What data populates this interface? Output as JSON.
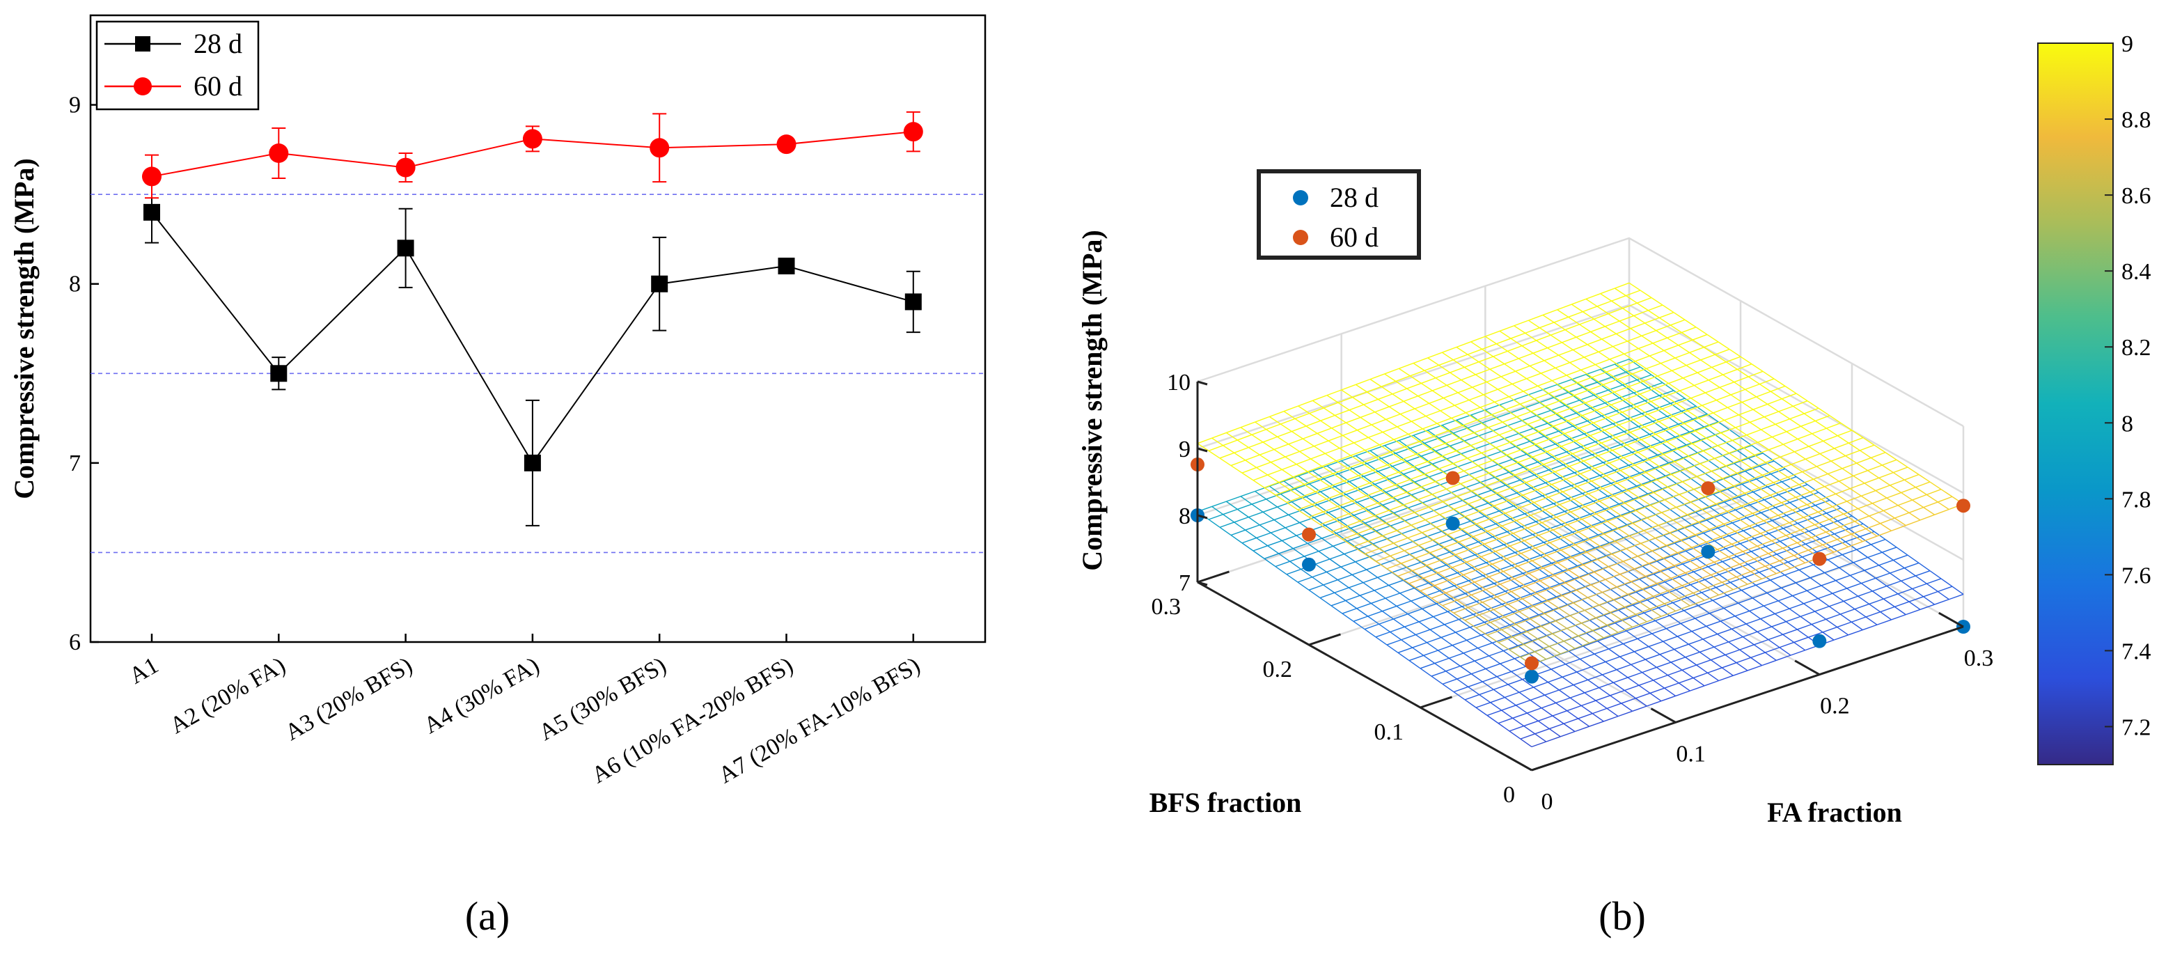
{
  "chart_data": [
    {
      "id": "a",
      "type": "line",
      "panel_label": "(a)",
      "title": "",
      "ylabel": "Compressive strength (MPa)",
      "xlabel": "",
      "ylim": [
        6,
        9.5
      ],
      "yticks": [
        6,
        7,
        8,
        9
      ],
      "reference_lines": [
        6.5,
        7.5,
        8.5
      ],
      "categories": [
        "A1",
        "A2 (20% FA)",
        "A3 (20% BFS)",
        "A4 (30% FA)",
        "A5 (30% BFS)",
        "A6 (10% FA-20% BFS)",
        "A7 (20% FA-10% BFS)"
      ],
      "series": [
        {
          "name": "28 d",
          "color": "#000000",
          "marker": "square",
          "values": [
            8.4,
            7.5,
            8.2,
            7.0,
            8.0,
            8.1,
            7.9
          ],
          "errors": [
            0.17,
            0.09,
            0.22,
            0.35,
            0.26,
            0.0,
            0.17
          ]
        },
        {
          "name": "60 d",
          "color": "#ff0000",
          "marker": "circle",
          "values": [
            8.6,
            8.73,
            8.65,
            8.81,
            8.76,
            8.78,
            8.85
          ],
          "errors": [
            0.12,
            0.14,
            0.08,
            0.07,
            0.19,
            0.0,
            0.11
          ]
        }
      ],
      "legend": {
        "position": "top-left",
        "entries": [
          "28 d",
          "60 d"
        ]
      }
    },
    {
      "id": "b",
      "type": "surface3d",
      "panel_label": "(b)",
      "xlabel": "FA fraction",
      "ylabel": "BFS fraction",
      "zlabel": "Compressive strength (MPa)",
      "xlim": [
        0,
        0.3
      ],
      "ylim": [
        0,
        0.3
      ],
      "zlim": [
        7,
        10
      ],
      "xticks": [
        0,
        0.1,
        0.2,
        0.3
      ],
      "yticks": [
        0,
        0.1,
        0.2,
        0.3
      ],
      "zticks": [
        7,
        8,
        9,
        10
      ],
      "x_tick_labels": [
        "0",
        "0.1",
        "0.2",
        "0.3"
      ],
      "y_tick_labels": [
        "0",
        "0.1",
        "0.2",
        "0.3"
      ],
      "z_tick_labels": [
        "7",
        "8",
        "9",
        "10"
      ],
      "surfaces": [
        {
          "name": "28 d",
          "z00": 7.35,
          "z_fa": 0.45,
          "z_bfs": 2.35
        },
        {
          "name": "60 d",
          "z00": 8.58,
          "z_fa": 0.85,
          "z_bfs": 1.65
        }
      ],
      "series": [
        {
          "name": "28 d",
          "color": "#0072bd",
          "points": [
            [
              0,
              0,
              8.4
            ],
            [
              0.2,
              0,
              7.5
            ],
            [
              0,
              0.2,
              8.2
            ],
            [
              0.3,
              0,
              7.0
            ],
            [
              0,
              0.3,
              8.0
            ],
            [
              0.1,
              0.2,
              8.1
            ],
            [
              0.2,
              0.1,
              7.9
            ]
          ]
        },
        {
          "name": "60 d",
          "color": "#d95319",
          "points": [
            [
              0,
              0,
              8.6
            ],
            [
              0.2,
              0,
              8.73
            ],
            [
              0,
              0.2,
              8.65
            ],
            [
              0.3,
              0,
              8.81
            ],
            [
              0,
              0.3,
              8.76
            ],
            [
              0.1,
              0.2,
              8.78
            ],
            [
              0.2,
              0.1,
              8.85
            ]
          ]
        }
      ],
      "legend": {
        "position": "top-left",
        "entries": [
          "28 d",
          "60 d"
        ]
      },
      "colorbar": {
        "min": 7.1,
        "max": 9,
        "ticks": [
          7.2,
          7.4,
          7.6,
          7.8,
          8,
          8.2,
          8.4,
          8.6,
          8.8,
          9
        ],
        "tick_labels": [
          "7.2",
          "7.4",
          "7.6",
          "7.8",
          "8",
          "8.2",
          "8.4",
          "8.6",
          "8.8",
          "9"
        ],
        "colormap": "parula"
      }
    }
  ]
}
